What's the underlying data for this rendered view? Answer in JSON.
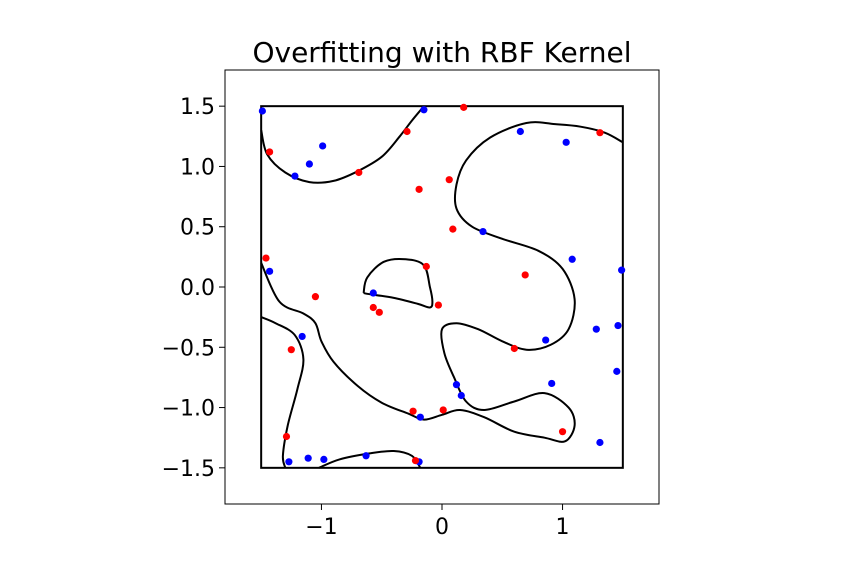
{
  "chart_data": {
    "type": "scatter",
    "title": "Overfitting with RBF Kernel",
    "xlabel": "",
    "ylabel": "",
    "xlim": [
      -1.8,
      1.8
    ],
    "ylim": [
      -1.8,
      1.8
    ],
    "xticks": [
      -1,
      0,
      1
    ],
    "xtick_labels": [
      "−1",
      "0",
      "1"
    ],
    "yticks": [
      -1.5,
      -1.0,
      -0.5,
      0.0,
      0.5,
      1.0,
      1.5
    ],
    "ytick_labels": [
      "−1.5",
      "−1.0",
      "−0.5",
      "0.0",
      "0.5",
      "1.0",
      "1.5"
    ],
    "grid": false,
    "legend": "none",
    "colors": {
      "class_a": "#0000ff",
      "class_b": "#ff0000",
      "boundary": "#000000",
      "box": "#000000"
    },
    "box": {
      "x": [
        -1.5,
        1.5
      ],
      "y": [
        -1.5,
        1.5
      ]
    },
    "series": [
      {
        "color": "#0000ff",
        "points": [
          [
            -1.49,
            1.46
          ],
          [
            -1.22,
            0.92
          ],
          [
            -1.1,
            1.02
          ],
          [
            -0.99,
            1.17
          ],
          [
            -0.15,
            1.47
          ],
          [
            0.65,
            1.29
          ],
          [
            1.03,
            1.2
          ],
          [
            0.34,
            0.46
          ],
          [
            1.08,
            0.23
          ],
          [
            1.49,
            0.14
          ],
          [
            -1.43,
            0.13
          ],
          [
            -0.57,
            -0.05
          ],
          [
            -1.16,
            -0.41
          ],
          [
            0.86,
            -0.44
          ],
          [
            1.28,
            -0.35
          ],
          [
            1.46,
            -0.32
          ],
          [
            1.45,
            -0.7
          ],
          [
            0.12,
            -0.81
          ],
          [
            0.16,
            -0.9
          ],
          [
            0.91,
            -0.8
          ],
          [
            -0.18,
            -1.08
          ],
          [
            1.31,
            -1.29
          ],
          [
            -1.27,
            -1.45
          ],
          [
            -1.11,
            -1.42
          ],
          [
            -0.98,
            -1.43
          ],
          [
            -0.63,
            -1.4
          ],
          [
            -0.19,
            -1.45
          ]
        ]
      },
      {
        "color": "#ff0000",
        "points": [
          [
            0.18,
            1.49
          ],
          [
            -0.29,
            1.29
          ],
          [
            1.31,
            1.28
          ],
          [
            -1.43,
            1.12
          ],
          [
            -0.69,
            0.95
          ],
          [
            0.06,
            0.89
          ],
          [
            -0.19,
            0.81
          ],
          [
            0.09,
            0.48
          ],
          [
            -1.46,
            0.24
          ],
          [
            -0.13,
            0.17
          ],
          [
            0.69,
            0.1
          ],
          [
            -1.05,
            -0.08
          ],
          [
            -0.03,
            -0.15
          ],
          [
            -0.57,
            -0.17
          ],
          [
            -0.52,
            -0.21
          ],
          [
            0.6,
            -0.51
          ],
          [
            -1.25,
            -0.52
          ],
          [
            -0.24,
            -1.03
          ],
          [
            0.01,
            -1.02
          ],
          [
            1.0,
            -1.2
          ],
          [
            -1.29,
            -1.24
          ],
          [
            -0.22,
            -1.44
          ]
        ]
      }
    ],
    "boundary_curves": [
      [
        [
          -1.5,
          1.3
        ],
        [
          -1.45,
          1.1
        ],
        [
          -1.3,
          0.95
        ],
        [
          -1.1,
          0.87
        ],
        [
          -0.9,
          0.88
        ],
        [
          -0.7,
          0.96
        ],
        [
          -0.5,
          1.08
        ],
        [
          -0.35,
          1.25
        ],
        [
          -0.25,
          1.38
        ],
        [
          -0.15,
          1.5
        ]
      ],
      [
        [
          1.5,
          1.2
        ],
        [
          1.35,
          1.28
        ],
        [
          1.15,
          1.33
        ],
        [
          0.95,
          1.35
        ],
        [
          0.7,
          1.36
        ],
        [
          0.4,
          1.24
        ],
        [
          0.2,
          1.05
        ],
        [
          0.12,
          0.85
        ],
        [
          0.12,
          0.65
        ],
        [
          0.25,
          0.5
        ],
        [
          0.5,
          0.4
        ],
        [
          0.8,
          0.3
        ],
        [
          1.0,
          0.15
        ],
        [
          1.1,
          -0.1
        ],
        [
          1.05,
          -0.35
        ],
        [
          0.9,
          -0.48
        ],
        [
          0.7,
          -0.52
        ],
        [
          0.5,
          -0.45
        ],
        [
          0.3,
          -0.35
        ],
        [
          0.12,
          -0.3
        ],
        [
          0.0,
          -0.35
        ],
        [
          0.02,
          -0.55
        ],
        [
          0.1,
          -0.75
        ],
        [
          0.2,
          -0.95
        ],
        [
          0.35,
          -1.02
        ],
        [
          0.6,
          -0.95
        ],
        [
          0.85,
          -0.88
        ],
        [
          1.05,
          -1.0
        ],
        [
          1.1,
          -1.15
        ],
        [
          1.02,
          -1.28
        ],
        [
          0.85,
          -1.25
        ],
        [
          0.6,
          -1.2
        ],
        [
          0.35,
          -1.08
        ],
        [
          0.15,
          -1.02
        ],
        [
          0.0,
          -1.06
        ],
        [
          -0.15,
          -1.1
        ],
        [
          -0.28,
          -1.05
        ],
        [
          -0.5,
          -0.96
        ],
        [
          -0.7,
          -0.82
        ],
        [
          -0.9,
          -0.62
        ],
        [
          -1.0,
          -0.45
        ],
        [
          -1.05,
          -0.3
        ],
        [
          -1.15,
          -0.22
        ],
        [
          -1.35,
          -0.12
        ],
        [
          -1.5,
          0.2
        ]
      ],
      [
        [
          -0.65,
          -0.05
        ],
        [
          -0.62,
          0.08
        ],
        [
          -0.48,
          0.21
        ],
        [
          -0.3,
          0.23
        ],
        [
          -0.15,
          0.18
        ],
        [
          -0.1,
          0.0
        ],
        [
          -0.08,
          -0.12
        ],
        [
          -0.1,
          -0.17
        ],
        [
          -0.2,
          -0.14
        ],
        [
          -0.4,
          -0.09
        ],
        [
          -0.6,
          -0.06
        ],
        [
          -0.65,
          -0.05
        ]
      ],
      [
        [
          -1.5,
          -0.25
        ],
        [
          -1.38,
          -0.3
        ],
        [
          -1.22,
          -0.4
        ],
        [
          -1.15,
          -0.6
        ],
        [
          -1.2,
          -0.85
        ],
        [
          -1.28,
          -1.15
        ],
        [
          -1.32,
          -1.4
        ],
        [
          -1.3,
          -1.5
        ]
      ],
      [
        [
          -1.02,
          -1.5
        ],
        [
          -0.85,
          -1.43
        ],
        [
          -0.6,
          -1.38
        ],
        [
          -0.4,
          -1.36
        ],
        [
          -0.25,
          -1.4
        ],
        [
          -0.18,
          -1.5
        ]
      ]
    ]
  }
}
